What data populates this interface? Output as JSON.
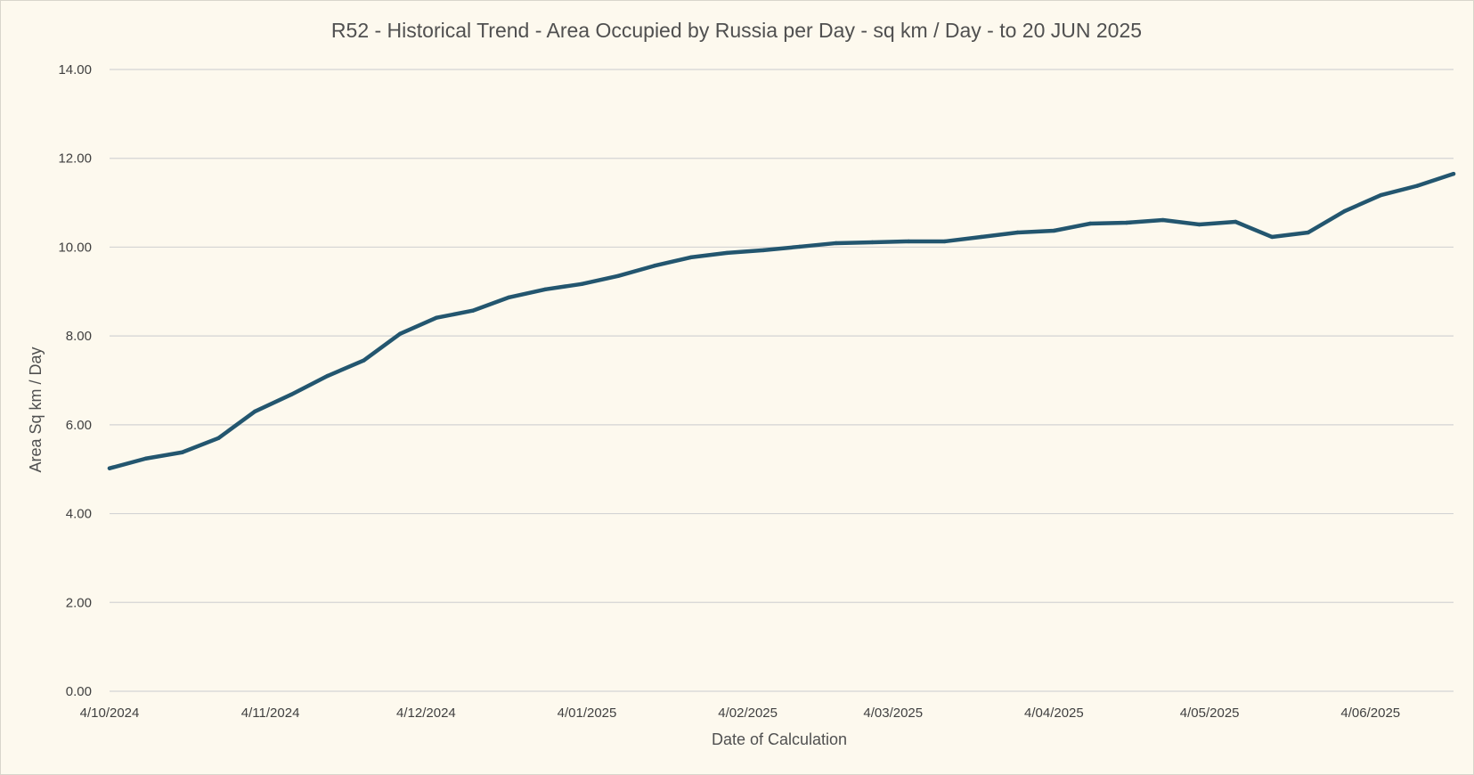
{
  "chart_data": {
    "type": "line",
    "title": "R52 - Historical Trend - Area Occupied by Russia per Day - sq km / Day - to 20 JUN 2025",
    "xlabel": "Date of Calculation",
    "ylabel": "Area Sq km / Day",
    "ylim": [
      0,
      14
    ],
    "y_ticks": [
      "0.00",
      "2.00",
      "4.00",
      "6.00",
      "8.00",
      "10.00",
      "12.00",
      "14.00"
    ],
    "x_ticks": [
      {
        "label": "4/10/2024",
        "day": 0
      },
      {
        "label": "4/11/2024",
        "day": 31
      },
      {
        "label": "4/12/2024",
        "day": 61
      },
      {
        "label": "4/01/2025",
        "day": 92
      },
      {
        "label": "4/02/2025",
        "day": 123
      },
      {
        "label": "4/03/2025",
        "day": 151
      },
      {
        "label": "4/04/2025",
        "day": 182
      },
      {
        "label": "4/05/2025",
        "day": 212
      },
      {
        "label": "4/06/2025",
        "day": 243
      }
    ],
    "grid": true,
    "line_color": "#23566f",
    "grid_color": "#d4d4d4",
    "series": [
      {
        "x": [
          0,
          7,
          14,
          21,
          28,
          35,
          42,
          49,
          56,
          63,
          70,
          77,
          84,
          91,
          98,
          105,
          112,
          119,
          126,
          133,
          140,
          147,
          154,
          161,
          168,
          175,
          182,
          189,
          196,
          203,
          210,
          217,
          224,
          231,
          238,
          245,
          252,
          259
        ],
        "values": [
          5.02,
          5.24,
          5.38,
          5.7,
          6.3,
          6.68,
          7.1,
          7.45,
          8.05,
          8.41,
          8.57,
          8.87,
          9.05,
          9.17,
          9.35,
          9.58,
          9.77,
          9.87,
          9.93,
          10.01,
          10.09,
          10.11,
          10.13,
          10.13,
          10.23,
          10.33,
          10.37,
          10.53,
          10.55,
          10.61,
          10.51,
          10.57,
          10.23,
          10.33,
          10.81,
          11.17,
          11.38,
          11.65
        ]
      }
    ]
  }
}
